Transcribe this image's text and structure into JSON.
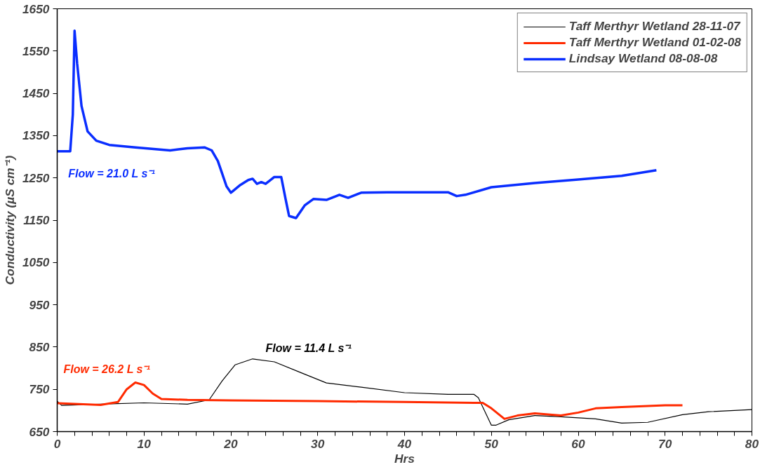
{
  "chart_data": {
    "type": "line",
    "xlabel": "Hrs",
    "ylabel": "Conductivity (µS cm⁻¹)",
    "xlim": [
      0,
      80
    ],
    "ylim": [
      650,
      1650
    ],
    "xticks": [
      0,
      {
        "value": 2,
        "label": null
      },
      {
        "value": 4,
        "label": null
      },
      {
        "value": 6,
        "label": null
      },
      {
        "value": 8,
        "label": null
      },
      10,
      {
        "value": 12,
        "label": null
      },
      {
        "value": 14,
        "label": null
      },
      {
        "value": 16,
        "label": null
      },
      {
        "value": 18,
        "label": null
      },
      20,
      {
        "value": 22,
        "label": null
      },
      {
        "value": 24,
        "label": null
      },
      {
        "value": 26,
        "label": null
      },
      {
        "value": 28,
        "label": null
      },
      30,
      {
        "value": 32,
        "label": null
      },
      {
        "value": 34,
        "label": null
      },
      {
        "value": 36,
        "label": null
      },
      {
        "value": 38,
        "label": null
      },
      40,
      {
        "value": 42,
        "label": null
      },
      {
        "value": 44,
        "label": null
      },
      {
        "value": 46,
        "label": null
      },
      {
        "value": 48,
        "label": null
      },
      50,
      {
        "value": 52,
        "label": null
      },
      {
        "value": 54,
        "label": null
      },
      {
        "value": 56,
        "label": null
      },
      {
        "value": 58,
        "label": null
      },
      60,
      {
        "value": 62,
        "label": null
      },
      {
        "value": 64,
        "label": null
      },
      {
        "value": 66,
        "label": null
      },
      {
        "value": 68,
        "label": null
      },
      70,
      {
        "value": 72,
        "label": null
      },
      {
        "value": 74,
        "label": null
      },
      {
        "value": 76,
        "label": null
      },
      {
        "value": 78,
        "label": null
      },
      80
    ],
    "yticks": [
      650,
      750,
      850,
      950,
      1050,
      1150,
      1250,
      1350,
      1450,
      1550,
      1650
    ],
    "grid": false,
    "legend": "top right",
    "marker": "none",
    "line_style": "solid",
    "series": [
      {
        "name": "Taff Merthyr Wetland 28-11-07",
        "color": "#000000",
        "x": [
          0,
          0.5,
          5,
          10,
          15,
          17.5,
          19,
          20.5,
          22.5,
          25,
          28,
          31,
          35,
          40,
          45,
          48,
          48.5,
          50,
          50.5,
          52,
          55,
          58,
          62,
          65,
          68,
          72,
          75,
          80
        ],
        "values": [
          722,
          712,
          715,
          718,
          715,
          725,
          770,
          808,
          822,
          815,
          790,
          765,
          755,
          742,
          738,
          738,
          730,
          665,
          665,
          678,
          688,
          685,
          680,
          670,
          672,
          690,
          697,
          702
        ]
      },
      {
        "name": "Taff Merthyr Wetland 01-02-08",
        "color": "#ff2a00",
        "x": [
          0,
          5,
          7,
          8,
          9,
          10,
          11,
          12,
          15,
          20,
          30,
          40,
          48,
          49,
          50,
          51.5,
          53,
          55,
          58,
          60,
          62,
          65,
          70,
          72
        ],
        "values": [
          717,
          713,
          720,
          750,
          766,
          760,
          740,
          727,
          725,
          724,
          722,
          720,
          718,
          718,
          705,
          680,
          688,
          693,
          688,
          695,
          705,
          708,
          712,
          712
        ]
      },
      {
        "name": "Lindsay Wetland 08-08-08",
        "color": "#0a2eff",
        "x": [
          0,
          1.5,
          1.8,
          2.0,
          2.3,
          2.8,
          3.5,
          4.5,
          6,
          9,
          13,
          15,
          17,
          17.8,
          18.5,
          19,
          19.5,
          20,
          21,
          22,
          22.5,
          23,
          23.5,
          24,
          25,
          25.8,
          26.3,
          26.7,
          27.5,
          28.5,
          29.5,
          31,
          32.5,
          33.5,
          35,
          38,
          42,
          45,
          46,
          47,
          50,
          55,
          60,
          65,
          69
        ],
        "values": [
          1313,
          1313,
          1400,
          1598,
          1520,
          1420,
          1360,
          1338,
          1328,
          1322,
          1315,
          1320,
          1322,
          1315,
          1290,
          1260,
          1230,
          1215,
          1232,
          1245,
          1248,
          1236,
          1240,
          1236,
          1252,
          1252,
          1200,
          1160,
          1155,
          1185,
          1200,
          1198,
          1210,
          1203,
          1215,
          1216,
          1216,
          1216,
          1207,
          1210,
          1228,
          1238,
          1246,
          1255,
          1268
        ]
      }
    ],
    "annotations": [
      "Flow = 11.4 L s⁻¹",
      "Flow = 26.2 L s⁻¹",
      "Flow = 21.0 L s⁻¹"
    ]
  }
}
